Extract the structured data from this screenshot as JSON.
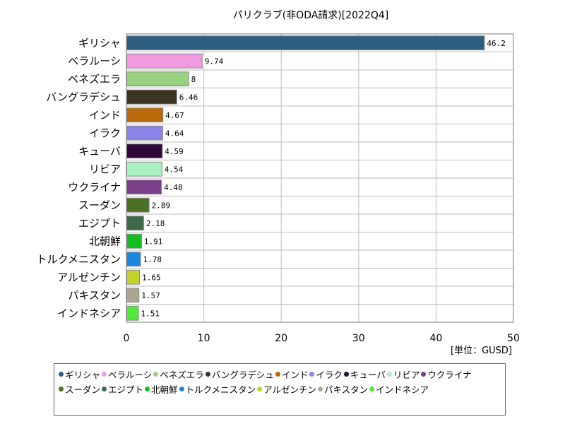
{
  "chart_data": {
    "type": "bar",
    "orientation": "horizontal",
    "title": "パリクラブ(非ODA請求)[2022Q4]",
    "unit_label": "[単位：GUSD]",
    "xlim": [
      0,
      50
    ],
    "x_ticks": [
      "0",
      "10",
      "20",
      "30",
      "40",
      "50"
    ],
    "grid": true,
    "legend_position": "bottom",
    "categories": [
      "ギリシャ",
      "ベラルーシ",
      "ベネズエラ",
      "バングラデシュ",
      "インド",
      "イラク",
      "キューバ",
      "リビア",
      "ウクライナ",
      "スーダン",
      "エジプト",
      "北朝鮮",
      "トルクメニスタン",
      "アルゼンチン",
      "パキスタン",
      "インドネシア"
    ],
    "values": [
      46.2,
      9.74,
      8,
      6.46,
      4.67,
      4.64,
      4.59,
      4.54,
      4.48,
      2.89,
      2.18,
      1.91,
      1.78,
      1.65,
      1.57,
      1.51
    ],
    "value_labels": [
      "46.2",
      "9.74",
      "8",
      "6.46",
      "4.67",
      "4.64",
      "4.59",
      "4.54",
      "4.48",
      "2.89",
      "2.18",
      "1.91",
      "1.78",
      "1.65",
      "1.57",
      "1.51"
    ],
    "colors": [
      "#2f5f80",
      "#f09be0",
      "#98d17f",
      "#3d3322",
      "#b86a0a",
      "#8a83e8",
      "#30063a",
      "#a8f0c0",
      "#7a3f8a",
      "#4c7124",
      "#3d6b4a",
      "#14be22",
      "#1a88e0",
      "#c2d22a",
      "#aca690",
      "#50ea3a"
    ]
  }
}
